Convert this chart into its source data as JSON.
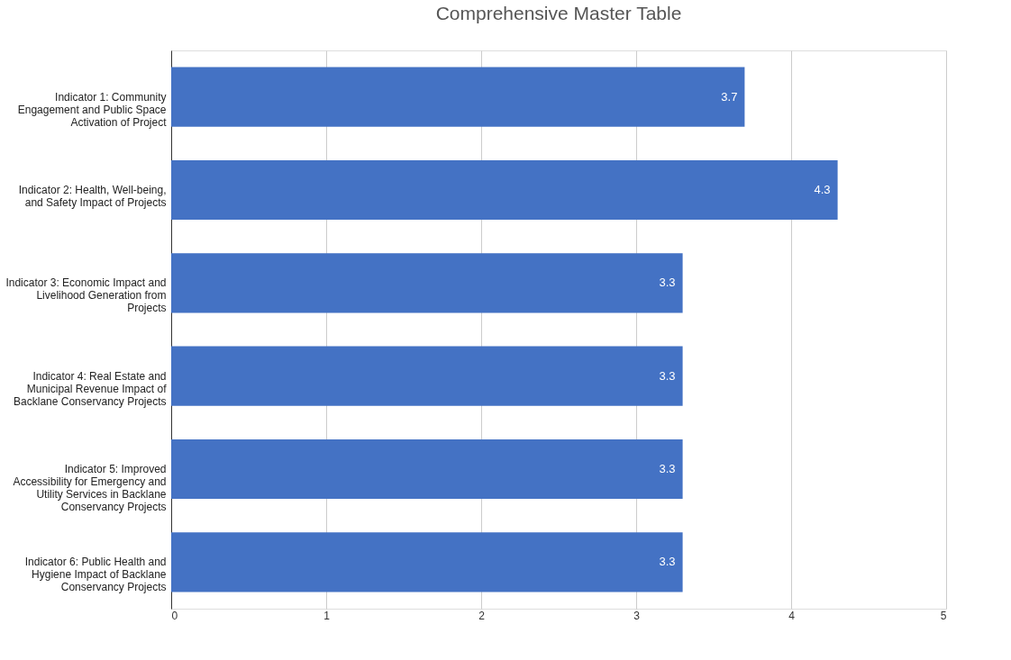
{
  "chart_data": {
    "type": "bar",
    "orientation": "horizontal",
    "title": "Comprehensive Master Table",
    "categories": [
      "Indicator 1: Community Engagement and Public Space Activation of Project",
      "Indicator 2: Health, Well-being, and Safety Impact of Projects",
      "Indicator 3: Economic Impact and Livelihood Generation from Projects",
      "Indicator 4: Real Estate and Municipal Revenue Impact of Backlane Conservancy Projects",
      "Indicator 5: Improved Accessibility for Emergency and Utility Services in Backlane Conservancy Projects",
      "Indicator 6: Public Health and Hygiene Impact of Backlane Conservancy Projects"
    ],
    "values": [
      3.7,
      4.3,
      3.3,
      3.3,
      3.3,
      3.3
    ],
    "color": "#4472c4",
    "xlim": [
      0,
      5
    ],
    "xticks": [
      0,
      1,
      2,
      3,
      4,
      5
    ],
    "grid": "x",
    "data_labels": true
  }
}
